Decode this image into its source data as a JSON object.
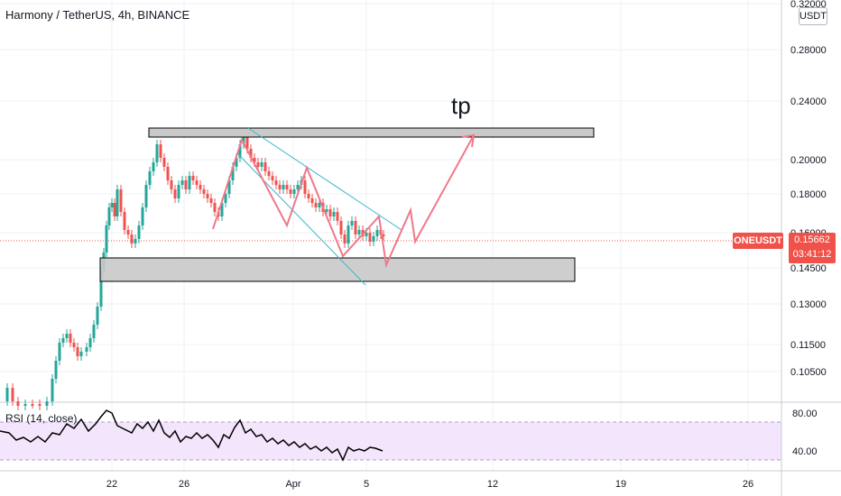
{
  "header": {
    "title": "Harmony / TetherUS, 4h, BINANCE",
    "currency_button": "USDT"
  },
  "annotation": {
    "tp_label": "tp"
  },
  "price_tag": {
    "symbol": "ONEUSDT",
    "price": "0.15662",
    "countdown": "03:41:12"
  },
  "rsi": {
    "title": "RSI (14, close)",
    "ticks": [
      "80.00",
      "40.00"
    ],
    "upper_band": 70,
    "lower_band": 30
  },
  "colors": {
    "up": "#26a69a",
    "down": "#ef5350",
    "drawing": "#f0788a",
    "channel": "#3ab7c9",
    "rsi_band": "#f3e5fb",
    "tag": "#f0524a"
  },
  "chart_data": {
    "type": "candlestick",
    "title": "Harmony / TetherUS, 4h, BINANCE",
    "y_scale": "log",
    "y_ticks": [
      "0.32000",
      "0.28000",
      "0.24000",
      "0.20000",
      "0.18000",
      "0.16000",
      "0.14500",
      "0.13000",
      "0.11500",
      "0.10500"
    ],
    "x_ticks": [
      "22",
      "26",
      "Apr",
      "5",
      "12",
      "19",
      "26"
    ],
    "last_price": 0.15662,
    "zones": [
      {
        "name": "resistance",
        "low": 0.214,
        "high": 0.219
      },
      {
        "name": "support",
        "low": 0.139,
        "high": 0.149
      }
    ],
    "target_label": "tp"
  }
}
